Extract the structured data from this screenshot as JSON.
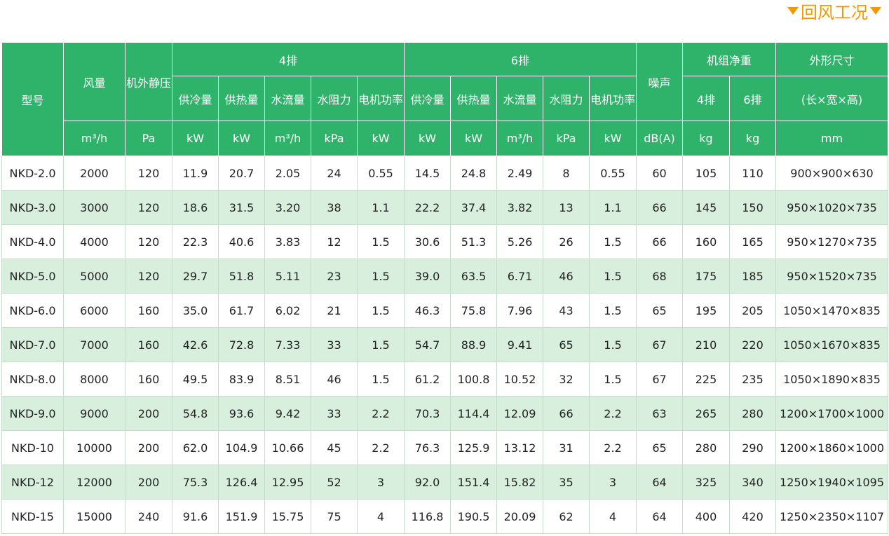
{
  "header": {
    "title": "回风工况"
  },
  "table": {
    "head": [
      [
        "型号",
        "风量",
        "机外静压",
        "4排",
        "6排",
        "噪声",
        "机组净重",
        "外形尺寸"
      ],
      [
        "供冷量",
        "供热量",
        "水流量",
        "水阻力",
        "电机功率",
        "供冷量",
        "供热量",
        "水流量",
        "水阻力",
        "电机功率",
        "4排",
        "6排",
        "(长×宽×高)"
      ],
      [
        "m³/h",
        "Pa",
        "kW",
        "kW",
        "m³/h",
        "kPa",
        "kW",
        "kW",
        "kW",
        "m³/h",
        "kPa",
        "kW",
        "dB(A)",
        "kg",
        "kg",
        "mm"
      ]
    ],
    "rows": [
      [
        "NKD-2.0",
        "2000",
        "120",
        "11.9",
        "20.7",
        "2.05",
        "24",
        "0.55",
        "14.5",
        "24.8",
        "2.49",
        "8",
        "0.55",
        "60",
        "105",
        "110",
        "900×900×630"
      ],
      [
        "NKD-3.0",
        "3000",
        "120",
        "18.6",
        "31.5",
        "3.20",
        "38",
        "1.1",
        "22.2",
        "37.4",
        "3.82",
        "13",
        "1.1",
        "66",
        "145",
        "150",
        "950×1020×735"
      ],
      [
        "NKD-4.0",
        "4000",
        "120",
        "22.3",
        "40.6",
        "3.83",
        "12",
        "1.5",
        "30.6",
        "51.3",
        "5.26",
        "26",
        "1.5",
        "66",
        "160",
        "165",
        "950×1270×735"
      ],
      [
        "NKD-5.0",
        "5000",
        "120",
        "29.7",
        "51.8",
        "5.11",
        "23",
        "1.5",
        "39.0",
        "63.5",
        "6.71",
        "46",
        "1.5",
        "68",
        "175",
        "185",
        "950×1520×735"
      ],
      [
        "NKD-6.0",
        "6000",
        "160",
        "35.0",
        "61.7",
        "6.02",
        "21",
        "1.5",
        "46.3",
        "75.8",
        "7.96",
        "43",
        "1.5",
        "65",
        "195",
        "205",
        "1050×1470×835"
      ],
      [
        "NKD-7.0",
        "7000",
        "160",
        "42.6",
        "72.8",
        "7.33",
        "33",
        "1.5",
        "54.7",
        "88.9",
        "9.41",
        "65",
        "1.5",
        "67",
        "210",
        "220",
        "1050×1670×835"
      ],
      [
        "NKD-8.0",
        "8000",
        "160",
        "49.5",
        "83.9",
        "8.51",
        "46",
        "1.5",
        "61.2",
        "100.8",
        "10.52",
        "32",
        "1.5",
        "67",
        "225",
        "235",
        "1050×1890×835"
      ],
      [
        "NKD-9.0",
        "9000",
        "200",
        "54.8",
        "93.6",
        "9.42",
        "33",
        "2.2",
        "70.3",
        "114.4",
        "12.09",
        "66",
        "2.2",
        "63",
        "265",
        "280",
        "1200×1700×1000"
      ],
      [
        "NKD-10",
        "10000",
        "200",
        "62.0",
        "104.9",
        "10.66",
        "45",
        "2.2",
        "76.3",
        "125.9",
        "13.12",
        "31",
        "2.2",
        "65",
        "280",
        "290",
        "1200×1860×1000"
      ],
      [
        "NKD-12",
        "12000",
        "200",
        "75.3",
        "126.4",
        "12.95",
        "52",
        "3",
        "92.0",
        "151.4",
        "15.82",
        "35",
        "3",
        "64",
        "325",
        "340",
        "1250×1940×1095"
      ],
      [
        "NKD-15",
        "15000",
        "240",
        "91.6",
        "151.9",
        "15.75",
        "75",
        "4",
        "116.8",
        "190.5",
        "20.09",
        "62",
        "4",
        "64",
        "400",
        "420",
        "1250×2350×1107"
      ]
    ]
  }
}
